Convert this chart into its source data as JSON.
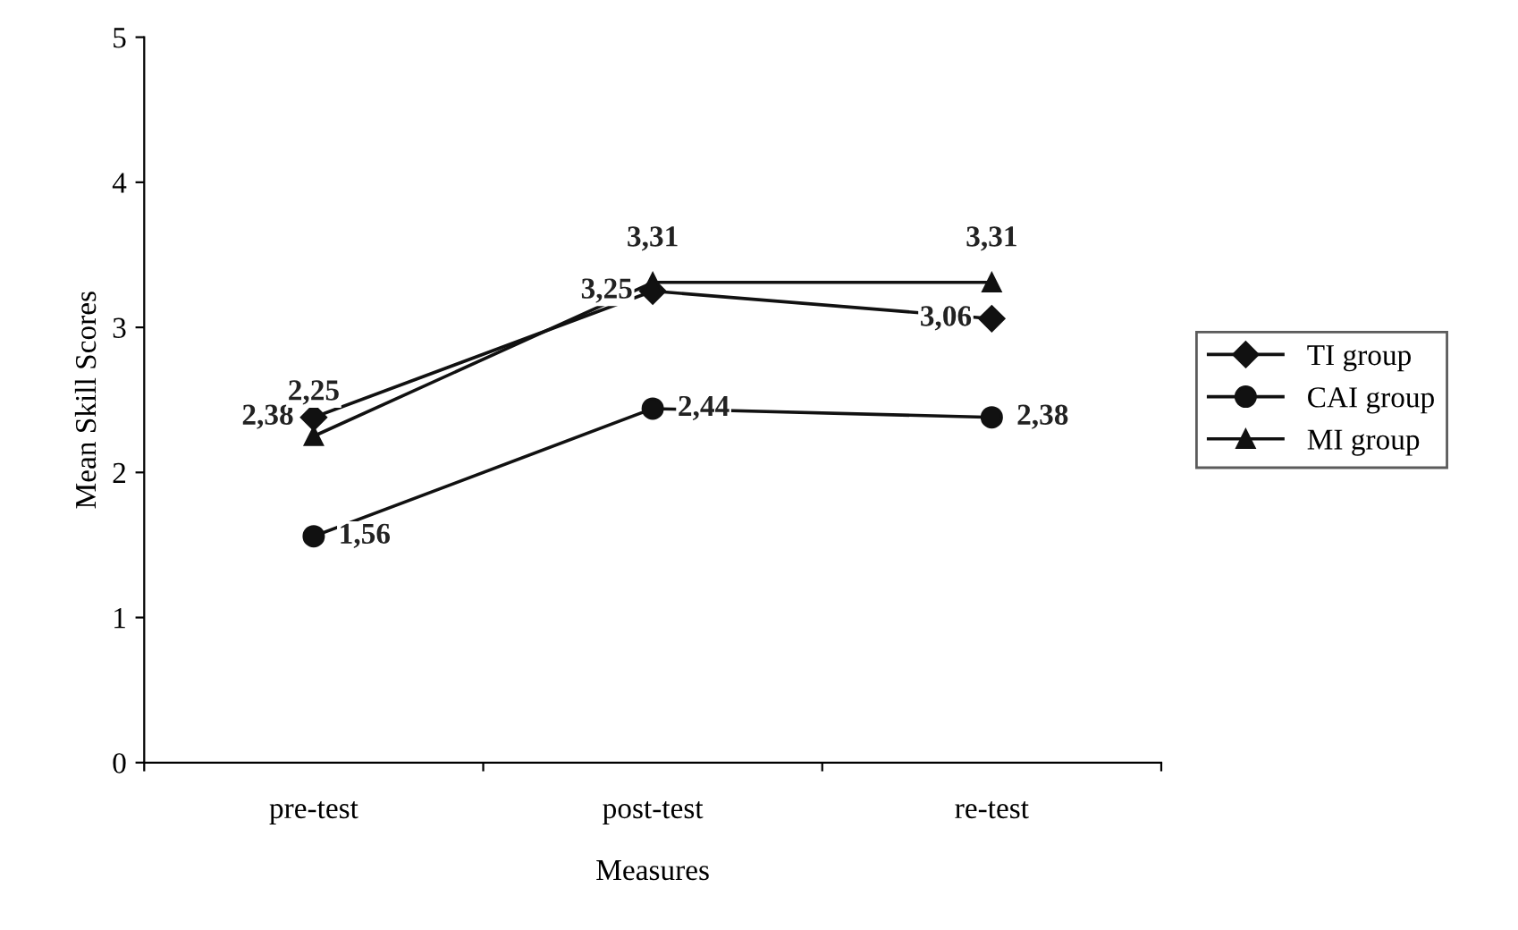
{
  "chart_data": {
    "type": "line",
    "xlabel": "Measures",
    "ylabel": "Mean Skill Scores",
    "categories": [
      "pre-test",
      "post-test",
      "re-test"
    ],
    "series": [
      {
        "name": "TI group",
        "color": "#111111",
        "marker": "diamond",
        "values": [
          2.38,
          3.25,
          3.06
        ],
        "value_labels": [
          "2,38",
          "3,25",
          "3,06"
        ]
      },
      {
        "name": "CAI group",
        "color": "#111111",
        "marker": "circle",
        "values": [
          1.56,
          2.44,
          2.38
        ],
        "value_labels": [
          "1,56",
          "2,44",
          "2,38"
        ]
      },
      {
        "name": "MI group",
        "color": "#111111",
        "marker": "triangle",
        "values": [
          2.25,
          3.31,
          3.31
        ],
        "value_labels": [
          "2,25",
          "3,31",
          "3,31"
        ]
      }
    ],
    "ylim": [
      0,
      5
    ],
    "yticks": [
      0,
      1,
      2,
      3,
      4,
      5
    ],
    "grid": false,
    "legend": "right",
    "line_style": "solid"
  }
}
